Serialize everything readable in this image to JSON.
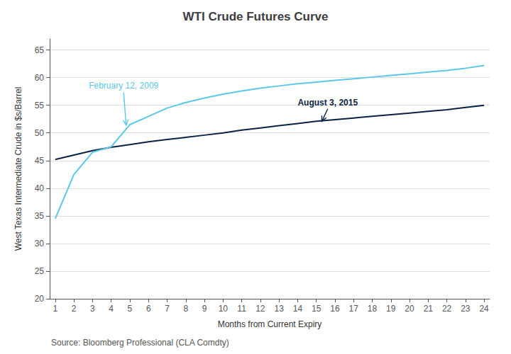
{
  "chart_data": {
    "type": "line",
    "title": "WTI Crude Futures Curve",
    "x_label": "Months from Current Expiry",
    "y_label": "West Texas Intermediate Crude in $s/Barrel",
    "source": "Source: Bloomberg Professional (CLA Comdty)",
    "x": [
      1,
      2,
      3,
      4,
      5,
      6,
      7,
      8,
      9,
      10,
      11,
      12,
      13,
      14,
      15,
      16,
      17,
      18,
      19,
      20,
      21,
      22,
      23,
      24
    ],
    "series": [
      {
        "color": "#0a2342",
        "values": [
          45.2,
          46.0,
          46.8,
          47.4,
          47.9,
          48.4,
          48.8,
          49.2,
          49.6,
          50.0,
          50.5,
          50.9,
          51.3,
          51.7,
          52.1,
          52.4,
          52.7,
          53.0,
          53.3,
          53.6,
          53.9,
          54.2,
          54.6,
          55.0
        ]
      },
      {
        "color": "#5bc8e8",
        "values": [
          34.5,
          42.5,
          46.5,
          47.5,
          51.5,
          53.0,
          54.5,
          55.5,
          56.3,
          57.0,
          57.6,
          58.1,
          58.5,
          58.9,
          59.2,
          59.5,
          59.8,
          60.1,
          60.4,
          60.7,
          61.0,
          61.3,
          61.7,
          62.2
        ]
      }
    ],
    "xlim": [
      0.7,
      24.3
    ],
    "xticks": [
      1,
      2,
      3,
      4,
      5,
      6,
      7,
      8,
      9,
      10,
      11,
      12,
      13,
      14,
      15,
      16,
      17,
      18,
      19,
      20,
      21,
      22,
      23,
      24
    ],
    "ylim": [
      20,
      67
    ],
    "yticks": [
      20,
      25,
      30,
      35,
      40,
      45,
      50,
      55,
      60,
      65
    ],
    "grid": "y",
    "annotations": [
      {
        "text": "February 12, 2009",
        "x": 4.8,
        "y": 51.4,
        "text_x": 2.8,
        "text_y": 58.5,
        "color": "#5bc8e8"
      },
      {
        "text": "August 3, 2015",
        "x": 15.3,
        "y": 52.1,
        "text_x": 14.0,
        "text_y": 55.5,
        "color": "#0a2342"
      }
    ]
  }
}
